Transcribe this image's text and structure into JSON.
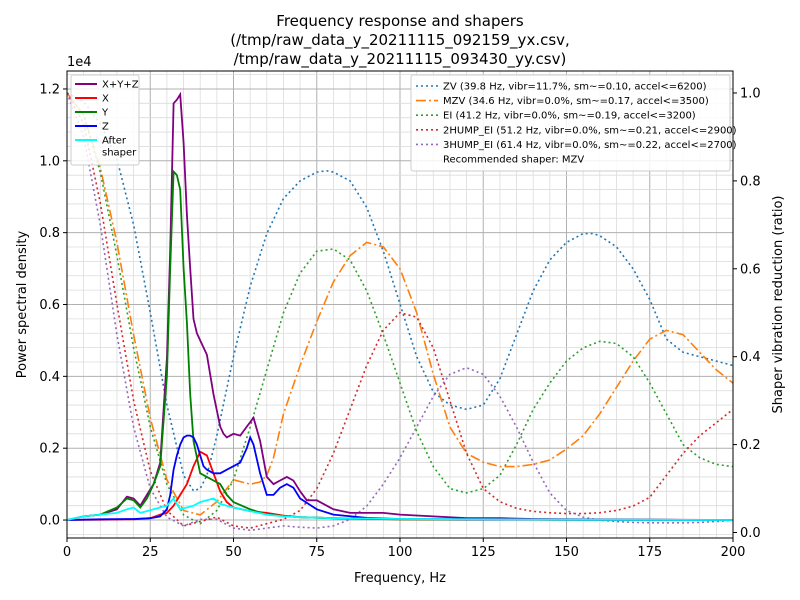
{
  "chart_data": {
    "type": "line",
    "title": [
      "Frequency response and shapers",
      "(/tmp/raw_data_y_20211115_092159_yx.csv,",
      "/tmp/raw_data_y_20211115_093430_yy.csv)"
    ],
    "xlabel": "Frequency, Hz",
    "ylabel": "Power spectral density",
    "y2label": "Shaper vibration reduction (ratio)",
    "y_offset_label": "1e4",
    "xlim": [
      0,
      200
    ],
    "ylim": [
      -500,
      12500
    ],
    "y2lim": [
      -0.0125,
      1.05
    ],
    "xticks": [
      "0",
      "25",
      "50",
      "75",
      "100",
      "125",
      "150",
      "175",
      "200"
    ],
    "xtick_values": [
      0,
      25,
      50,
      75,
      100,
      125,
      150,
      175,
      200
    ],
    "yticks": [
      "0.0",
      "0.2",
      "0.4",
      "0.6",
      "0.8",
      "1.0",
      "1.2"
    ],
    "ytick_values": [
      0,
      2000,
      4000,
      6000,
      8000,
      10000,
      12000
    ],
    "y2ticks": [
      "0.0",
      "0.2",
      "0.4",
      "0.6",
      "0.8",
      "1.0"
    ],
    "y2tick_values": [
      0,
      0.2,
      0.4,
      0.6,
      0.8,
      1.0
    ],
    "grid": true,
    "legend_left_placement": "top-left",
    "legend_right_placement": "top-right",
    "recommended_note": "Recommended shaper: MZV",
    "psd_series": [
      {
        "name": "X+Y+Z",
        "color": "#800080",
        "x": [
          0,
          5,
          10,
          15,
          18,
          20,
          22,
          24,
          26,
          28,
          30,
          31,
          32,
          33,
          34,
          35,
          36,
          37,
          38,
          39,
          40,
          42,
          44,
          46,
          47,
          48,
          49,
          50,
          52,
          54,
          56,
          58,
          60,
          62,
          64,
          66,
          68,
          70,
          72,
          75,
          80,
          85,
          90,
          95,
          100,
          110,
          120,
          130,
          140,
          150,
          175,
          200
        ],
        "y": [
          0,
          100,
          150,
          300,
          650,
          600,
          400,
          700,
          1000,
          1600,
          4500,
          7500,
          11600,
          11700,
          11850,
          10500,
          8500,
          7000,
          5600,
          5200,
          5000,
          4600,
          3500,
          2600,
          2400,
          2300,
          2350,
          2400,
          2350,
          2600,
          2850,
          2200,
          1200,
          1000,
          1100,
          1200,
          1100,
          800,
          550,
          550,
          300,
          200,
          200,
          200,
          150,
          100,
          50,
          50,
          30,
          20,
          10,
          0
        ]
      },
      {
        "name": "X",
        "color": "#ff0000",
        "x": [
          0,
          10,
          20,
          25,
          28,
          30,
          32,
          34,
          36,
          38,
          40,
          42,
          44,
          46,
          48,
          50,
          55,
          60,
          65,
          70,
          80,
          90,
          100,
          120,
          150,
          200
        ],
        "y": [
          0,
          10,
          20,
          50,
          150,
          200,
          400,
          700,
          1000,
          1500,
          1900,
          1800,
          1300,
          800,
          500,
          350,
          250,
          200,
          120,
          80,
          50,
          30,
          20,
          10,
          5,
          0
        ]
      },
      {
        "name": "Y",
        "color": "#008000",
        "x": [
          0,
          5,
          10,
          15,
          18,
          20,
          22,
          24,
          26,
          28,
          30,
          31,
          32,
          33,
          34,
          35,
          36,
          37,
          38,
          40,
          42,
          44,
          46,
          48,
          50,
          55,
          60,
          70,
          80,
          100,
          150,
          200
        ],
        "y": [
          0,
          100,
          150,
          350,
          600,
          550,
          350,
          600,
          1000,
          1500,
          4000,
          7000,
          9700,
          9600,
          9200,
          7000,
          5500,
          3500,
          2200,
          1300,
          1200,
          1100,
          1000,
          700,
          500,
          300,
          150,
          80,
          50,
          20,
          10,
          0
        ]
      },
      {
        "name": "Z",
        "color": "#0000ff",
        "x": [
          0,
          10,
          20,
          25,
          28,
          30,
          31,
          32,
          33,
          34,
          35,
          36,
          37,
          38,
          39,
          40,
          41,
          42,
          44,
          46,
          48,
          50,
          52,
          54,
          55,
          56,
          58,
          60,
          62,
          64,
          66,
          68,
          70,
          75,
          80,
          90,
          100,
          150,
          200
        ],
        "y": [
          0,
          20,
          30,
          50,
          100,
          300,
          700,
          1400,
          1800,
          2100,
          2300,
          2350,
          2350,
          2300,
          2100,
          1800,
          1500,
          1400,
          1300,
          1300,
          1400,
          1500,
          1600,
          2000,
          2300,
          2100,
          1300,
          700,
          700,
          900,
          1000,
          900,
          600,
          300,
          150,
          60,
          30,
          10,
          0
        ]
      },
      {
        "name": "After\nshaper",
        "color": "#00ffff",
        "x": [
          0,
          5,
          10,
          15,
          18,
          20,
          22,
          24,
          26,
          28,
          30,
          32,
          34,
          36,
          38,
          40,
          42,
          44,
          46,
          48,
          50,
          55,
          60,
          65,
          70,
          80,
          100,
          150,
          200
        ],
        "y": [
          0,
          100,
          150,
          200,
          300,
          350,
          200,
          250,
          300,
          350,
          400,
          600,
          300,
          350,
          400,
          500,
          550,
          600,
          450,
          400,
          350,
          250,
          150,
          100,
          80,
          50,
          30,
          10,
          0
        ]
      }
    ],
    "shaper_series": [
      {
        "name": "ZV (39.8 Hz, vibr=11.7%, sm~=0.10, accel<=6200)",
        "color": "#1f77b4",
        "dash": "2,3",
        "x": [
          0,
          5,
          10,
          15,
          20,
          25,
          30,
          35,
          38,
          40,
          42,
          45,
          50,
          55,
          60,
          65,
          70,
          75,
          78,
          80,
          85,
          90,
          95,
          100,
          105,
          110,
          115,
          120,
          125,
          130,
          135,
          140,
          145,
          150,
          155,
          158,
          160,
          165,
          170,
          175,
          180,
          185,
          190,
          195,
          200
        ],
        "y": [
          1.0,
          0.98,
          0.93,
          0.85,
          0.7,
          0.5,
          0.29,
          0.13,
          0.095,
          0.1,
          0.13,
          0.22,
          0.4,
          0.56,
          0.68,
          0.76,
          0.8,
          0.82,
          0.823,
          0.82,
          0.8,
          0.74,
          0.64,
          0.52,
          0.4,
          0.32,
          0.29,
          0.28,
          0.29,
          0.35,
          0.45,
          0.55,
          0.62,
          0.66,
          0.68,
          0.68,
          0.675,
          0.65,
          0.6,
          0.53,
          0.44,
          0.41,
          0.4,
          0.39,
          0.38
        ]
      },
      {
        "name": "MZV (34.6 Hz, vibr=0.0%, sm~=0.17, accel<=3500)",
        "color": "#ff7f0e",
        "dash": "10,3,2,3",
        "x": [
          0,
          5,
          10,
          15,
          20,
          25,
          30,
          35,
          40,
          45,
          50,
          55,
          58,
          60,
          62,
          65,
          70,
          75,
          80,
          85,
          90,
          95,
          100,
          105,
          110,
          115,
          120,
          125,
          130,
          135,
          140,
          145,
          150,
          155,
          160,
          165,
          170,
          175,
          180,
          185,
          190,
          195,
          200
        ],
        "y": [
          1.0,
          0.95,
          0.83,
          0.66,
          0.45,
          0.26,
          0.12,
          0.05,
          0.04,
          0.07,
          0.12,
          0.11,
          0.115,
          0.13,
          0.17,
          0.27,
          0.38,
          0.48,
          0.57,
          0.63,
          0.66,
          0.65,
          0.6,
          0.5,
          0.36,
          0.24,
          0.18,
          0.16,
          0.15,
          0.15,
          0.155,
          0.165,
          0.19,
          0.22,
          0.27,
          0.33,
          0.39,
          0.44,
          0.46,
          0.45,
          0.41,
          0.37,
          0.34
        ]
      },
      {
        "name": "EI (41.2 Hz, vibr=0.0%, sm~=0.19, accel<=3200)",
        "color": "#2ca02c",
        "dash": "2,3",
        "x": [
          0,
          5,
          10,
          15,
          20,
          25,
          30,
          35,
          40,
          45,
          50,
          55,
          60,
          65,
          70,
          75,
          80,
          85,
          90,
          95,
          100,
          105,
          110,
          115,
          120,
          125,
          130,
          135,
          140,
          145,
          150,
          155,
          160,
          165,
          170,
          175,
          180,
          185,
          190,
          195,
          200
        ],
        "y": [
          1.0,
          0.95,
          0.82,
          0.63,
          0.42,
          0.24,
          0.11,
          0.04,
          0.02,
          0.05,
          0.12,
          0.24,
          0.37,
          0.5,
          0.59,
          0.64,
          0.645,
          0.62,
          0.55,
          0.45,
          0.34,
          0.23,
          0.15,
          0.1,
          0.09,
          0.1,
          0.13,
          0.2,
          0.28,
          0.34,
          0.39,
          0.42,
          0.435,
          0.43,
          0.4,
          0.34,
          0.27,
          0.2,
          0.17,
          0.155,
          0.15
        ]
      },
      {
        "name": "2HUMP_EI (51.2 Hz, vibr=0.0%, sm~=0.21, accel<=2900)",
        "color": "#d62728",
        "dash": "2,3",
        "x": [
          0,
          5,
          10,
          15,
          20,
          25,
          30,
          35,
          40,
          45,
          50,
          55,
          60,
          65,
          70,
          75,
          80,
          85,
          90,
          95,
          100,
          105,
          110,
          115,
          120,
          125,
          130,
          135,
          140,
          145,
          150,
          155,
          160,
          165,
          170,
          175,
          180,
          185,
          190,
          195,
          200
        ],
        "y": [
          1.0,
          0.93,
          0.75,
          0.52,
          0.3,
          0.14,
          0.05,
          0.015,
          0.025,
          0.035,
          0.015,
          0.01,
          0.02,
          0.03,
          0.05,
          0.1,
          0.18,
          0.28,
          0.38,
          0.46,
          0.5,
          0.49,
          0.42,
          0.3,
          0.18,
          0.1,
          0.07,
          0.055,
          0.048,
          0.045,
          0.043,
          0.043,
          0.045,
          0.05,
          0.06,
          0.08,
          0.13,
          0.18,
          0.22,
          0.25,
          0.28
        ]
      },
      {
        "name": "3HUMP_EI (61.4 Hz, vibr=0.0%, sm~=0.22, accel<=2700)",
        "color": "#9467bd",
        "dash": "2,3",
        "x": [
          0,
          5,
          10,
          15,
          20,
          25,
          30,
          35,
          40,
          45,
          50,
          55,
          60,
          65,
          70,
          75,
          80,
          85,
          90,
          95,
          100,
          105,
          110,
          115,
          120,
          125,
          130,
          135,
          140,
          145,
          150,
          155,
          160,
          165,
          170,
          175,
          180,
          185,
          190,
          195,
          200
        ],
        "y": [
          1.0,
          0.9,
          0.7,
          0.45,
          0.24,
          0.1,
          0.035,
          0.015,
          0.03,
          0.03,
          0.01,
          0.005,
          0.01,
          0.015,
          0.012,
          0.01,
          0.015,
          0.03,
          0.06,
          0.11,
          0.17,
          0.24,
          0.31,
          0.36,
          0.375,
          0.36,
          0.31,
          0.24,
          0.16,
          0.09,
          0.05,
          0.035,
          0.028,
          0.025,
          0.023,
          0.022,
          0.022,
          0.022,
          0.023,
          0.025,
          0.028
        ]
      }
    ]
  }
}
